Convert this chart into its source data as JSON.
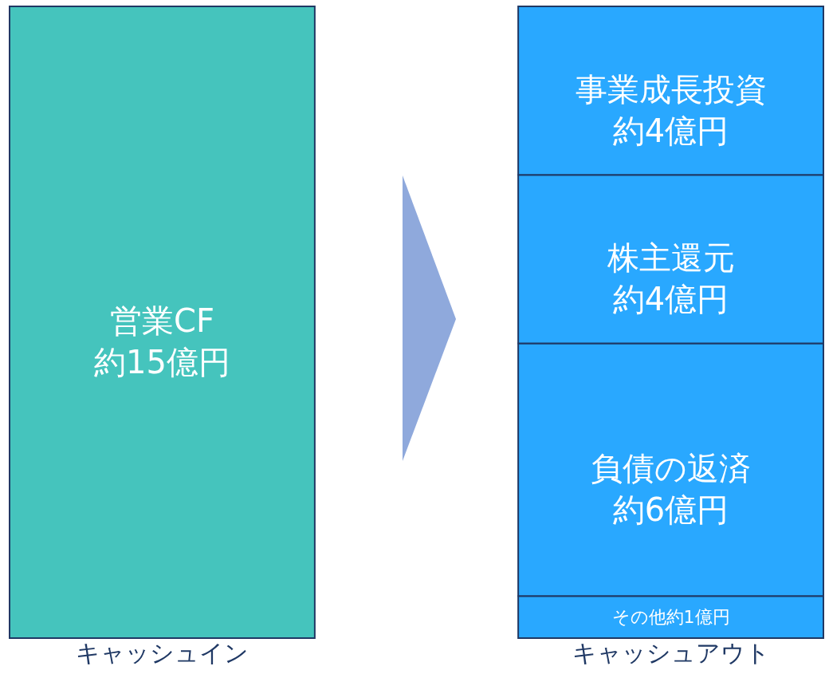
{
  "chart_data": {
    "type": "bar",
    "stacked": true,
    "categories": [
      "キャッシュイン",
      "キャッシュアウト"
    ],
    "ylim": [
      0,
      15
    ],
    "tick_labels": "x",
    "series": [
      {
        "name": "営業CF",
        "color": "#45c4bd",
        "values": [
          15,
          null
        ],
        "value_labels": [
          "約15億円",
          null
        ]
      },
      {
        "name": "その他",
        "color": "#29a8ff",
        "values": [
          null,
          1
        ],
        "value_labels": [
          null,
          "約1億円"
        ]
      },
      {
        "name": "負債の返済",
        "color": "#29a8ff",
        "values": [
          null,
          6
        ],
        "value_labels": [
          null,
          "約6億円"
        ]
      },
      {
        "name": "株主還元",
        "color": "#29a8ff",
        "values": [
          null,
          4
        ],
        "value_labels": [
          null,
          "約4億円"
        ]
      },
      {
        "name": "事業成長投資",
        "color": "#29a8ff",
        "values": [
          null,
          4
        ],
        "value_labels": [
          null,
          "約4億円"
        ]
      }
    ]
  }
}
